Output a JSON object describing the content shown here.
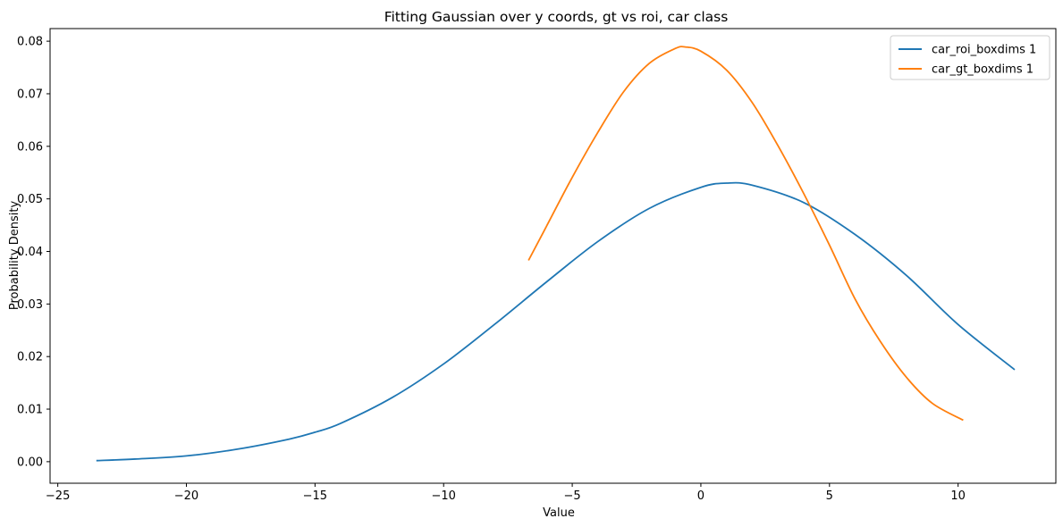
{
  "chart_data": {
    "type": "line",
    "title": "Fitting Gaussian over y coords, gt vs roi, car class",
    "xlabel": "Value",
    "ylabel": "Probability Density",
    "xlim": [
      -25.3,
      13.8
    ],
    "ylim": [
      -0.0041,
      0.0824
    ],
    "xticks": [
      -25,
      -20,
      -15,
      -10,
      -5,
      0,
      5,
      10
    ],
    "yticks": [
      0.0,
      0.01,
      0.02,
      0.03,
      0.04,
      0.05,
      0.06,
      0.07,
      0.08
    ],
    "ytick_labels": [
      "0.00",
      "0.01",
      "0.02",
      "0.03",
      "0.04",
      "0.05",
      "0.06",
      "0.07",
      "0.08"
    ],
    "xtick_labels": [
      "−25",
      "−20",
      "−15",
      "−10",
      "−5",
      "0",
      "5",
      "10"
    ],
    "grid": false,
    "legend_position": "top-right",
    "series": [
      {
        "name": "car_roi_boxdims 1",
        "color": "#1f77b4",
        "x": [
          -23.5,
          -22,
          -20,
          -18,
          -16,
          -15,
          -14,
          -12,
          -10,
          -8,
          -6,
          -4,
          -2,
          0,
          1,
          2,
          4,
          6,
          8,
          10,
          12.2
        ],
        "y": [
          0.0002,
          0.0005,
          0.0011,
          0.0024,
          0.0043,
          0.0056,
          0.0073,
          0.0122,
          0.0186,
          0.0262,
          0.0342,
          0.0419,
          0.0482,
          0.0522,
          0.053,
          0.0526,
          0.0493,
          0.0432,
          0.0354,
          0.0261,
          0.0175
        ]
      },
      {
        "name": "car_gt_boxdims 1",
        "color": "#ff7f0e",
        "x": [
          -6.7,
          -6,
          -5,
          -4,
          -3,
          -2,
          -1,
          -0.6,
          0,
          1,
          2,
          3,
          4,
          5,
          6,
          7,
          8,
          9,
          10.2
        ],
        "y": [
          0.0383,
          0.0448,
          0.0541,
          0.0627,
          0.0704,
          0.0758,
          0.0786,
          0.0789,
          0.0781,
          0.0745,
          0.0683,
          0.0601,
          0.051,
          0.0412,
          0.0309,
          0.0227,
          0.016,
          0.0111,
          0.0079
        ]
      }
    ]
  }
}
